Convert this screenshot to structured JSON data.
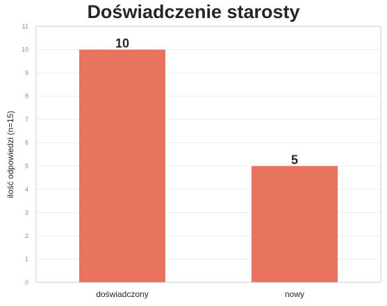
{
  "chart_data": {
    "type": "bar",
    "title": "Doświadczenie starosty",
    "xlabel": "",
    "ylabel": "ilość odpowiedzi (n=15)",
    "categories": [
      "doświadczony",
      "nowy"
    ],
    "values": [
      10,
      5
    ],
    "data_labels": [
      "10",
      "5"
    ],
    "ylim": [
      0,
      11
    ],
    "yticks": [
      "0",
      "1",
      "2",
      "3",
      "4",
      "5",
      "6",
      "7",
      "8",
      "9",
      "10",
      "11"
    ],
    "grid": true,
    "bar_color": "#e8735f"
  }
}
